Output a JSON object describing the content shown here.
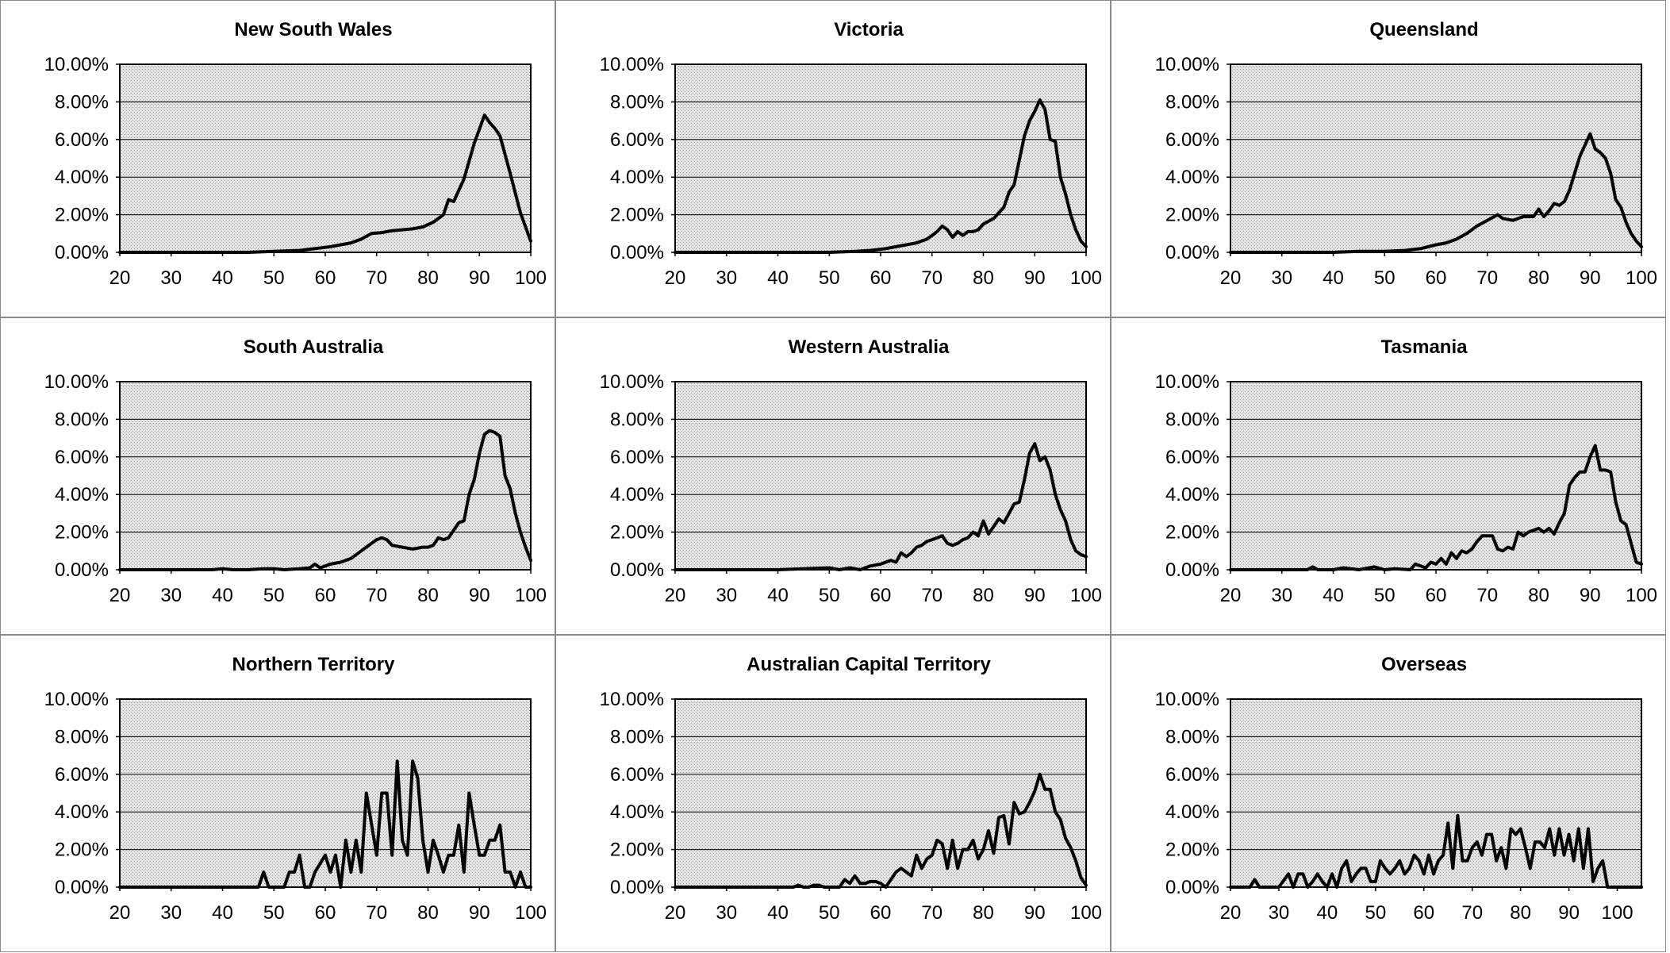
{
  "chart_data": [
    {
      "type": "line",
      "title": "New South Wales",
      "xlim": [
        20,
        100
      ],
      "ylim": [
        0,
        10
      ],
      "x_ticks": [
        "20",
        "30",
        "40",
        "50",
        "60",
        "70",
        "80",
        "90",
        "100"
      ],
      "y_ticks": [
        "0.00%",
        "2.00%",
        "4.00%",
        "6.00%",
        "8.00%",
        "10.00%"
      ],
      "grid": true,
      "x": [
        20,
        25,
        30,
        35,
        40,
        45,
        50,
        55,
        58,
        61,
        63,
        65,
        67,
        69,
        71,
        73,
        75,
        77,
        79,
        81,
        83,
        84,
        85,
        87,
        89,
        91,
        92,
        93,
        94,
        96,
        98,
        100
      ],
      "y": [
        0,
        0,
        0,
        0,
        0,
        0,
        0.05,
        0.1,
        0.2,
        0.3,
        0.4,
        0.5,
        0.7,
        1.0,
        1.05,
        1.15,
        1.2,
        1.25,
        1.35,
        1.6,
        2.0,
        2.8,
        2.7,
        3.9,
        5.8,
        7.3,
        6.9,
        6.6,
        6.2,
        4.2,
        2.1,
        0.6
      ]
    },
    {
      "type": "line",
      "title": "Victoria",
      "xlim": [
        20,
        100
      ],
      "ylim": [
        0,
        10
      ],
      "x_ticks": [
        "20",
        "30",
        "40",
        "50",
        "60",
        "70",
        "80",
        "90",
        "100"
      ],
      "y_ticks": [
        "0.00%",
        "2.00%",
        "4.00%",
        "6.00%",
        "8.00%",
        "10.00%"
      ],
      "grid": true,
      "x": [
        20,
        30,
        40,
        50,
        55,
        58,
        61,
        63,
        65,
        67,
        69,
        70,
        71,
        72,
        73,
        74,
        75,
        76,
        77,
        78,
        79,
        80,
        82,
        84,
        85,
        86,
        88,
        89,
        90,
        91,
        92,
        93,
        94,
        95,
        96,
        97,
        98,
        99,
        100
      ],
      "y": [
        0,
        0,
        0,
        0,
        0.05,
        0.1,
        0.2,
        0.3,
        0.4,
        0.5,
        0.7,
        0.9,
        1.1,
        1.4,
        1.2,
        0.8,
        1.1,
        0.9,
        1.1,
        1.1,
        1.2,
        1.5,
        1.8,
        2.4,
        3.2,
        3.6,
        6.2,
        7.0,
        7.5,
        8.1,
        7.6,
        6.0,
        5.9,
        4.0,
        3.1,
        2.0,
        1.2,
        0.6,
        0.3
      ]
    },
    {
      "type": "line",
      "title": "Queensland",
      "xlim": [
        20,
        100
      ],
      "ylim": [
        0,
        10
      ],
      "x_ticks": [
        "20",
        "30",
        "40",
        "50",
        "60",
        "70",
        "80",
        "90",
        "100"
      ],
      "y_ticks": [
        "0.00%",
        "2.00%",
        "4.00%",
        "6.00%",
        "8.00%",
        "10.00%"
      ],
      "grid": true,
      "x": [
        20,
        30,
        40,
        45,
        50,
        54,
        57,
        60,
        62,
        64,
        66,
        68,
        70,
        72,
        73,
        75,
        77,
        79,
        80,
        81,
        82,
        83,
        84,
        85,
        86,
        87,
        88,
        89,
        90,
        91,
        92,
        93,
        94,
        95,
        96,
        97,
        98,
        99,
        100
      ],
      "y": [
        0,
        0,
        0,
        0.05,
        0.05,
        0.1,
        0.2,
        0.4,
        0.5,
        0.7,
        1.0,
        1.4,
        1.7,
        2.0,
        1.8,
        1.7,
        1.9,
        1.9,
        2.3,
        1.9,
        2.2,
        2.6,
        2.5,
        2.7,
        3.3,
        4.2,
        5.1,
        5.7,
        6.3,
        5.5,
        5.3,
        5.0,
        4.2,
        2.8,
        2.4,
        1.6,
        1.0,
        0.6,
        0.3
      ]
    },
    {
      "type": "line",
      "title": "South Australia",
      "xlim": [
        20,
        100
      ],
      "ylim": [
        0,
        10
      ],
      "x_ticks": [
        "20",
        "30",
        "40",
        "50",
        "60",
        "70",
        "80",
        "90",
        "100"
      ],
      "y_ticks": [
        "0.00%",
        "2.00%",
        "4.00%",
        "6.00%",
        "8.00%",
        "10.00%"
      ],
      "grid": true,
      "x": [
        20,
        30,
        38,
        40,
        42,
        45,
        48,
        50,
        52,
        55,
        57,
        58,
        59,
        61,
        63,
        65,
        67,
        69,
        70,
        71,
        72,
        73,
        75,
        77,
        79,
        80,
        81,
        82,
        83,
        84,
        86,
        87,
        88,
        89,
        90,
        91,
        92,
        93,
        94,
        95,
        96,
        97,
        98,
        99,
        100
      ],
      "y": [
        0,
        0,
        0,
        0.05,
        0,
        0,
        0.05,
        0.05,
        0,
        0.05,
        0.1,
        0.3,
        0.1,
        0.3,
        0.4,
        0.6,
        1.0,
        1.4,
        1.6,
        1.7,
        1.6,
        1.3,
        1.2,
        1.1,
        1.2,
        1.2,
        1.3,
        1.7,
        1.6,
        1.7,
        2.5,
        2.6,
        4.0,
        4.8,
        6.2,
        7.2,
        7.4,
        7.3,
        7.1,
        5.0,
        4.3,
        3.0,
        2.0,
        1.2,
        0.5
      ]
    },
    {
      "type": "line",
      "title": "Western Australia",
      "xlim": [
        20,
        100
      ],
      "ylim": [
        0,
        10
      ],
      "x_ticks": [
        "20",
        "30",
        "40",
        "50",
        "60",
        "70",
        "80",
        "90",
        "100"
      ],
      "y_ticks": [
        "0.00%",
        "2.00%",
        "4.00%",
        "6.00%",
        "8.00%",
        "10.00%"
      ],
      "grid": true,
      "x": [
        20,
        30,
        40,
        50,
        52,
        54,
        56,
        58,
        60,
        62,
        63,
        64,
        65,
        66,
        67,
        68,
        69,
        70,
        71,
        72,
        73,
        74,
        75,
        76,
        77,
        78,
        79,
        80,
        81,
        82,
        83,
        84,
        85,
        86,
        87,
        88,
        89,
        90,
        91,
        92,
        93,
        94,
        95,
        96,
        97,
        98,
        99,
        100
      ],
      "y": [
        0,
        0,
        0,
        0.1,
        0,
        0.1,
        0,
        0.2,
        0.3,
        0.5,
        0.4,
        0.9,
        0.7,
        0.9,
        1.2,
        1.3,
        1.5,
        1.6,
        1.7,
        1.8,
        1.4,
        1.3,
        1.4,
        1.6,
        1.7,
        2.0,
        1.8,
        2.6,
        1.9,
        2.3,
        2.7,
        2.5,
        3.0,
        3.5,
        3.6,
        4.8,
        6.2,
        6.7,
        5.8,
        6.0,
        5.3,
        4.0,
        3.2,
        2.6,
        1.6,
        1.0,
        0.8,
        0.7
      ]
    },
    {
      "type": "line",
      "title": "Tasmania",
      "xlim": [
        20,
        100
      ],
      "ylim": [
        0,
        10
      ],
      "x_ticks": [
        "20",
        "30",
        "40",
        "50",
        "60",
        "70",
        "80",
        "90",
        "100"
      ],
      "y_ticks": [
        "0.00%",
        "2.00%",
        "4.00%",
        "6.00%",
        "8.00%",
        "10.00%"
      ],
      "grid": true,
      "x": [
        20,
        30,
        35,
        36,
        37,
        40,
        42,
        45,
        48,
        50,
        52,
        55,
        56,
        58,
        59,
        60,
        61,
        62,
        63,
        64,
        65,
        66,
        67,
        68,
        69,
        70,
        71,
        72,
        73,
        74,
        75,
        76,
        77,
        78,
        79,
        80,
        81,
        82,
        83,
        84,
        85,
        86,
        87,
        88,
        89,
        90,
        91,
        92,
        93,
        94,
        95,
        96,
        97,
        98,
        99,
        100
      ],
      "y": [
        0,
        0,
        0,
        0.15,
        0,
        0,
        0.1,
        0,
        0.15,
        0,
        0.05,
        0,
        0.3,
        0.1,
        0.4,
        0.3,
        0.6,
        0.3,
        0.9,
        0.6,
        1.0,
        0.9,
        1.1,
        1.5,
        1.8,
        1.8,
        1.8,
        1.1,
        1.0,
        1.2,
        1.1,
        2.0,
        1.8,
        2.0,
        2.1,
        2.2,
        2.0,
        2.2,
        1.9,
        2.5,
        3.0,
        4.5,
        4.9,
        5.2,
        5.2,
        6.0,
        6.6,
        5.3,
        5.3,
        5.2,
        3.6,
        2.6,
        2.4,
        1.4,
        0.4,
        0.3
      ]
    },
    {
      "type": "line",
      "title": "Northern Territory",
      "xlim": [
        20,
        100
      ],
      "ylim": [
        0,
        10
      ],
      "x_ticks": [
        "20",
        "30",
        "40",
        "50",
        "60",
        "70",
        "80",
        "90",
        "100"
      ],
      "y_ticks": [
        "0.00%",
        "2.00%",
        "4.00%",
        "6.00%",
        "8.00%",
        "10.00%"
      ],
      "grid": true,
      "x": [
        20,
        30,
        40,
        47,
        48,
        49,
        50,
        52,
        53,
        54,
        55,
        56,
        57,
        58,
        60,
        61,
        62,
        63,
        64,
        65,
        66,
        67,
        68,
        70,
        71,
        72,
        73,
        74,
        75,
        76,
        77,
        78,
        79,
        80,
        81,
        82,
        83,
        84,
        85,
        86,
        87,
        88,
        89,
        90,
        91,
        92,
        93,
        94,
        95,
        96,
        97,
        98,
        99,
        100
      ],
      "y": [
        0,
        0,
        0,
        0,
        0.8,
        0,
        0,
        0,
        0.8,
        0.8,
        1.7,
        0,
        0,
        0.8,
        1.7,
        0.8,
        1.7,
        0,
        2.5,
        0.8,
        2.5,
        0.8,
        5.0,
        1.7,
        5.0,
        5.0,
        1.7,
        6.7,
        2.5,
        1.7,
        6.7,
        5.8,
        2.5,
        0.8,
        2.5,
        1.7,
        0.8,
        1.7,
        1.7,
        3.3,
        0.8,
        5.0,
        3.3,
        1.7,
        1.7,
        2.5,
        2.5,
        3.3,
        0.8,
        0.8,
        0,
        0.8,
        0,
        0
      ]
    },
    {
      "type": "line",
      "title": "Australian Capital Territory",
      "xlim": [
        20,
        100
      ],
      "ylim": [
        0,
        10
      ],
      "x_ticks": [
        "20",
        "30",
        "40",
        "50",
        "60",
        "70",
        "80",
        "90",
        "100"
      ],
      "y_ticks": [
        "0.00%",
        "2.00%",
        "4.00%",
        "6.00%",
        "8.00%",
        "10.00%"
      ],
      "grid": true,
      "x": [
        20,
        30,
        40,
        43,
        44,
        45,
        46,
        47,
        48,
        49,
        50,
        52,
        53,
        54,
        55,
        56,
        57,
        58,
        59,
        60,
        61,
        63,
        64,
        65,
        66,
        67,
        68,
        69,
        70,
        71,
        72,
        73,
        74,
        75,
        76,
        77,
        78,
        79,
        80,
        81,
        82,
        83,
        84,
        85,
        86,
        87,
        88,
        89,
        90,
        91,
        92,
        93,
        94,
        95,
        96,
        97,
        98,
        99,
        100
      ],
      "y": [
        0,
        0,
        0,
        0,
        0.1,
        0,
        0,
        0.1,
        0.1,
        0,
        0,
        0,
        0.4,
        0.2,
        0.6,
        0.2,
        0.2,
        0.3,
        0.3,
        0.2,
        0,
        0.8,
        1.0,
        0.8,
        0.6,
        1.7,
        1.0,
        1.5,
        1.7,
        2.5,
        2.3,
        1.0,
        2.5,
        1.0,
        2.0,
        2.0,
        2.5,
        1.5,
        2.0,
        3.0,
        1.8,
        3.7,
        3.8,
        2.3,
        4.5,
        3.9,
        4.0,
        4.5,
        5.1,
        6.0,
        5.2,
        5.2,
        4.0,
        3.6,
        2.6,
        2.1,
        1.4,
        0.5,
        0.1
      ]
    },
    {
      "type": "line",
      "title": "Overseas",
      "xlim": [
        20,
        105
      ],
      "ylim": [
        0,
        10
      ],
      "x_ticks": [
        "20",
        "30",
        "40",
        "50",
        "60",
        "70",
        "80",
        "90",
        "100"
      ],
      "y_ticks": [
        "0.00%",
        "2.00%",
        "4.00%",
        "6.00%",
        "8.00%",
        "10.00%"
      ],
      "grid": true,
      "x": [
        20,
        24,
        25,
        26,
        27,
        28,
        30,
        32,
        33,
        34,
        35,
        36,
        37,
        38,
        39,
        40,
        41,
        42,
        43,
        44,
        45,
        46,
        47,
        48,
        49,
        50,
        51,
        52,
        53,
        54,
        55,
        56,
        57,
        58,
        59,
        60,
        61,
        62,
        63,
        64,
        65,
        66,
        67,
        68,
        69,
        70,
        71,
        72,
        73,
        74,
        75,
        76,
        77,
        78,
        79,
        80,
        81,
        82,
        83,
        84,
        85,
        86,
        87,
        88,
        89,
        90,
        91,
        92,
        93,
        94,
        95,
        96,
        97,
        98,
        99,
        100,
        101,
        102,
        103,
        104,
        105
      ],
      "y": [
        0,
        0,
        0.4,
        0,
        0,
        0,
        0,
        0.7,
        0,
        0.7,
        0.7,
        0,
        0.3,
        0.7,
        0.3,
        0,
        0.7,
        0,
        1.0,
        1.4,
        0.3,
        0.7,
        1.0,
        1.0,
        0.3,
        0.3,
        1.4,
        1.0,
        0.7,
        1.0,
        1.4,
        0.7,
        1.0,
        1.7,
        1.4,
        0.7,
        1.7,
        0.7,
        1.4,
        1.7,
        3.4,
        1.0,
        3.8,
        1.4,
        1.4,
        2.1,
        2.4,
        1.7,
        2.8,
        2.8,
        1.4,
        2.1,
        1.0,
        3.1,
        2.8,
        3.1,
        2.1,
        1.0,
        2.4,
        2.4,
        2.1,
        3.1,
        1.7,
        3.1,
        1.7,
        2.8,
        1.4,
        3.1,
        1.0,
        3.1,
        0.3,
        1.0,
        1.4,
        0,
        0,
        0,
        0,
        0,
        0,
        0,
        0
      ]
    }
  ]
}
